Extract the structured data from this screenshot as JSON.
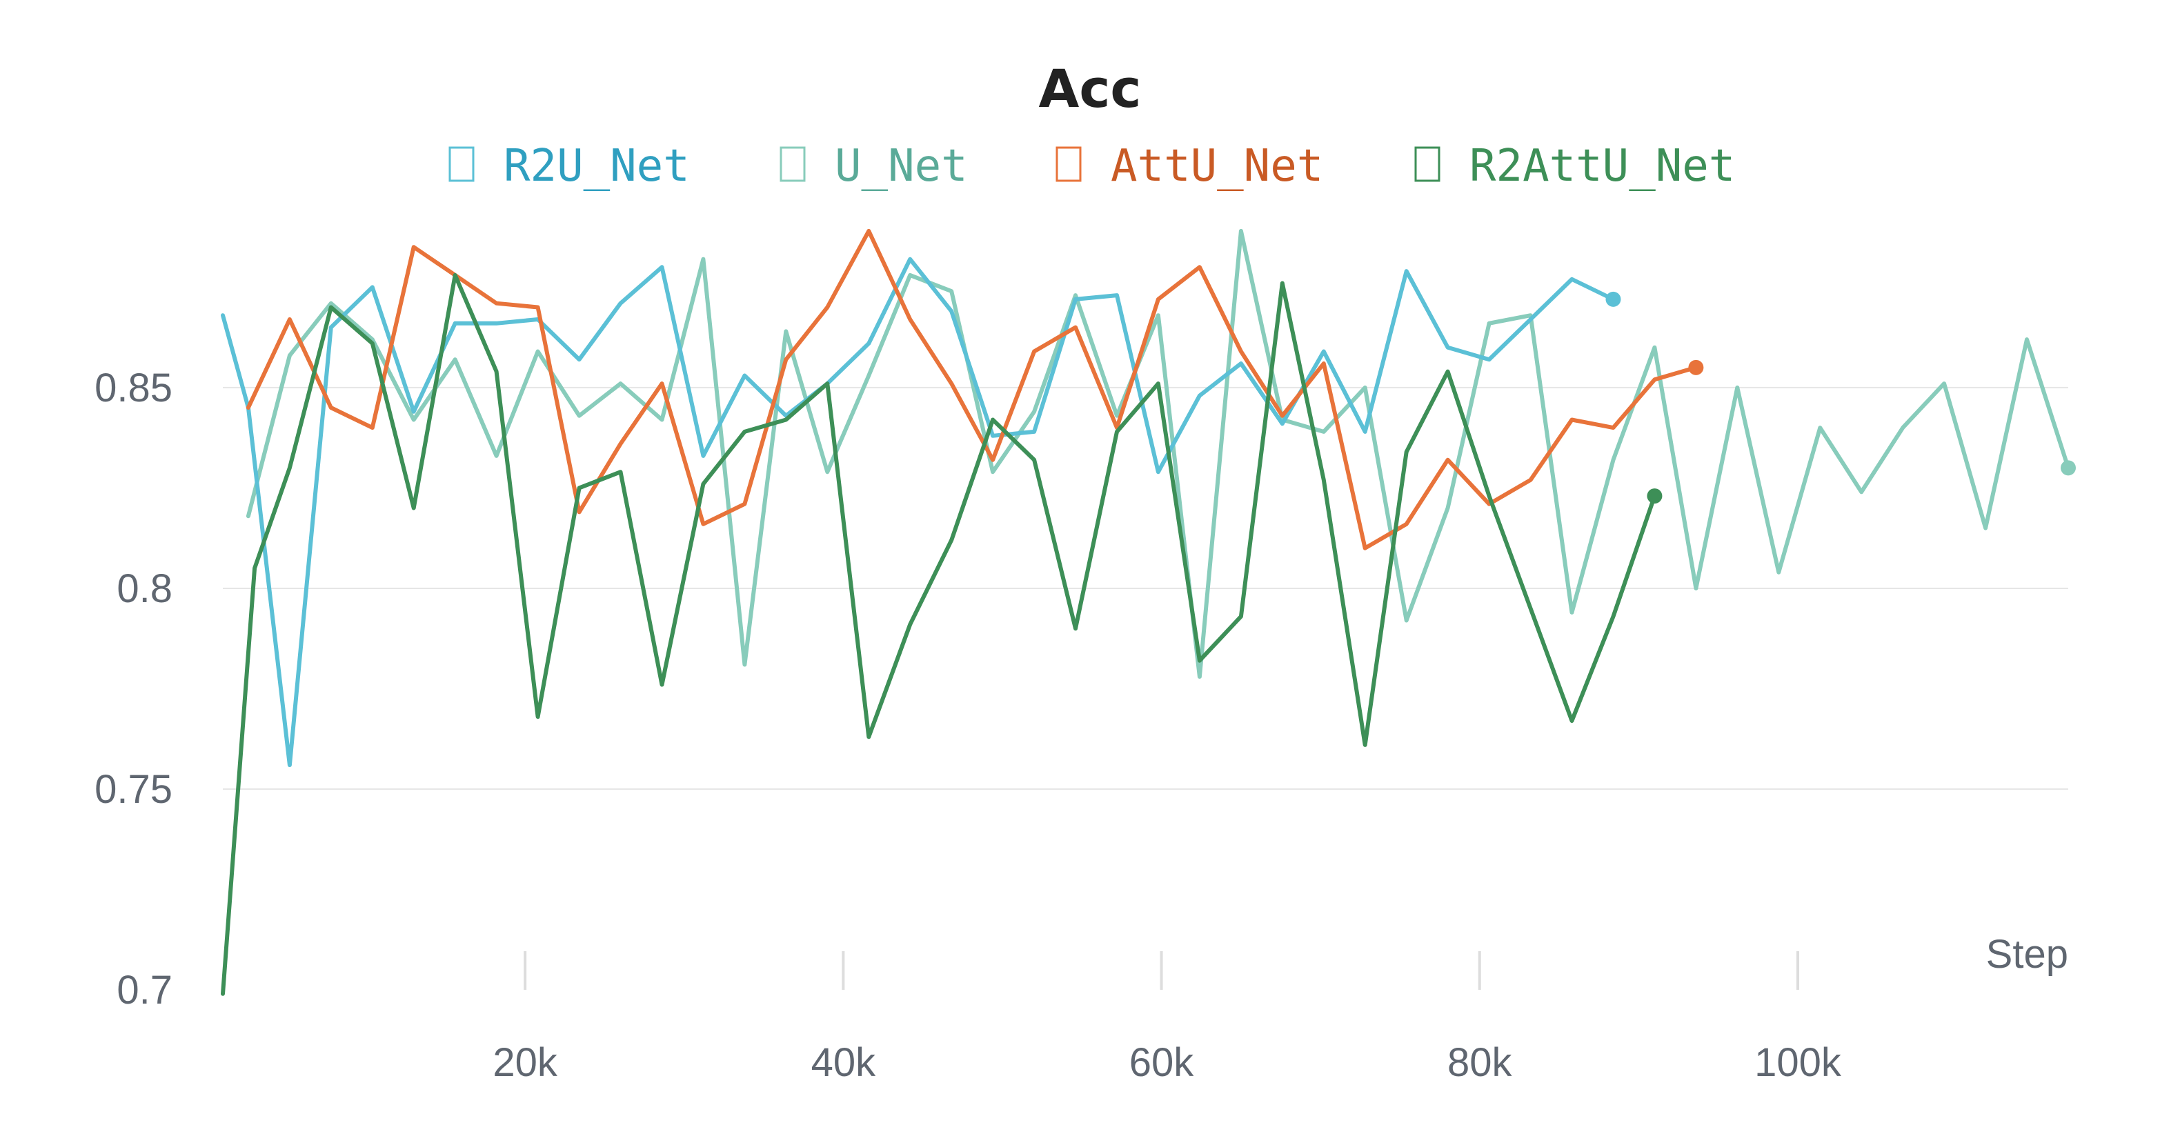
{
  "chart_data": {
    "type": "line",
    "title": "Acc",
    "xlabel": "Step",
    "ylabel": "",
    "xlim": [
      1000,
      117000
    ],
    "ylim": [
      0.7,
      0.895
    ],
    "xticks": [
      20000,
      40000,
      60000,
      80000,
      100000
    ],
    "xtick_labels": [
      "20k",
      "40k",
      "60k",
      "80k",
      "100k"
    ],
    "yticks": [
      0.7,
      0.75,
      0.8,
      0.85
    ],
    "ytick_labels": [
      "0.7",
      "0.75",
      "0.8",
      "0.85"
    ],
    "grid": true,
    "legend_position": "top-center",
    "series": [
      {
        "name": "U_Net",
        "color": "#88ccbb",
        "x": [
          2600,
          5200,
          7800,
          10400,
          13000,
          15600,
          18200,
          20800,
          23400,
          26000,
          28600,
          31200,
          33800,
          36400,
          39000,
          41600,
          44200,
          46800,
          49400,
          52000,
          54600,
          57200,
          59800,
          62400,
          65000,
          67600,
          70200,
          72800,
          75400,
          78000,
          80600,
          83200,
          85800,
          88400,
          91000,
          93600,
          96200,
          98800,
          101400,
          104000,
          106600,
          109200,
          111800,
          114400,
          117000
        ],
        "y": [
          0.818,
          0.858,
          0.871,
          0.862,
          0.842,
          0.857,
          0.833,
          0.859,
          0.843,
          0.851,
          0.842,
          0.882,
          0.781,
          0.864,
          0.829,
          0.853,
          0.878,
          0.874,
          0.829,
          0.844,
          0.873,
          0.843,
          0.868,
          0.778,
          0.889,
          0.842,
          0.839,
          0.85,
          0.792,
          0.82,
          0.866,
          0.868,
          0.794,
          0.832,
          0.86,
          0.8,
          0.85,
          0.804,
          0.84,
          0.824,
          0.84,
          0.851,
          0.815,
          0.862,
          0.83
        ]
      },
      {
        "name": "R2U_Net",
        "color": "#5bc0d6",
        "x": [
          1000,
          2600,
          5200,
          7800,
          10400,
          13000,
          15600,
          18200,
          20800,
          23400,
          26000,
          28600,
          31200,
          33800,
          36400,
          39000,
          41600,
          44200,
          46800,
          49400,
          52000,
          54600,
          57200,
          59800,
          62400,
          65000,
          67600,
          70200,
          72800,
          75400,
          78000,
          80600,
          83200,
          85800,
          88400
        ],
        "y": [
          0.868,
          0.845,
          0.756,
          0.865,
          0.875,
          0.844,
          0.866,
          0.866,
          0.867,
          0.857,
          0.871,
          0.88,
          0.833,
          0.853,
          0.843,
          0.851,
          0.861,
          0.882,
          0.869,
          0.838,
          0.839,
          0.872,
          0.873,
          0.829,
          0.848,
          0.856,
          0.841,
          0.859,
          0.839,
          0.879,
          0.86,
          0.857,
          0.867,
          0.877,
          0.872
        ]
      },
      {
        "name": "AttU_Net",
        "color": "#e8733a",
        "x": [
          2600,
          5200,
          7800,
          10400,
          13000,
          15600,
          18200,
          20800,
          23400,
          26000,
          28600,
          31200,
          33800,
          36400,
          39000,
          41600,
          44200,
          46800,
          49400,
          52000,
          54600,
          57200,
          59800,
          62400,
          65000,
          67600,
          70200,
          72800,
          75400,
          78000,
          80600,
          83200,
          85800,
          88400,
          91000,
          93600
        ],
        "y": [
          0.845,
          0.867,
          0.845,
          0.84,
          0.885,
          0.878,
          0.871,
          0.87,
          0.819,
          0.836,
          0.851,
          0.816,
          0.821,
          0.857,
          0.87,
          0.889,
          0.867,
          0.851,
          0.832,
          0.859,
          0.865,
          0.84,
          0.872,
          0.88,
          0.859,
          0.843,
          0.856,
          0.81,
          0.816,
          0.832,
          0.821,
          0.827,
          0.842,
          0.84,
          0.852,
          0.855
        ]
      },
      {
        "name": "R2AttU_Net",
        "color": "#3d8f57",
        "x": [
          1000,
          3000,
          5200,
          7800,
          10400,
          13000,
          15600,
          18200,
          20800,
          23400,
          26000,
          28600,
          31200,
          33800,
          36400,
          39000,
          41600,
          44200,
          46800,
          49400,
          52000,
          54600,
          57200,
          59800,
          62400,
          65000,
          67600,
          70200,
          72800,
          75400,
          78000,
          80600,
          83200,
          85800,
          88400,
          91000
        ],
        "y": [
          0.699,
          0.805,
          0.83,
          0.87,
          0.861,
          0.82,
          0.878,
          0.854,
          0.768,
          0.825,
          0.829,
          0.776,
          0.826,
          0.839,
          0.842,
          0.851,
          0.763,
          0.791,
          0.812,
          0.842,
          0.832,
          0.79,
          0.839,
          0.851,
          0.782,
          0.793,
          0.876,
          0.827,
          0.761,
          0.834,
          0.854,
          0.823,
          0.795,
          0.767,
          0.793,
          0.823
        ]
      }
    ]
  },
  "legend": {
    "items": [
      {
        "label": "R2U_Net",
        "color": "#5bc0d6",
        "text_color": "#2f9fc0"
      },
      {
        "label": "U_Net",
        "color": "#88ccbb",
        "text_color": "#5aaa98"
      },
      {
        "label": "AttU_Net",
        "color": "#e8733a",
        "text_color": "#c95a24"
      },
      {
        "label": "R2AttU_Net",
        "color": "#3d8f57",
        "text_color": "#3d8f57"
      }
    ]
  }
}
